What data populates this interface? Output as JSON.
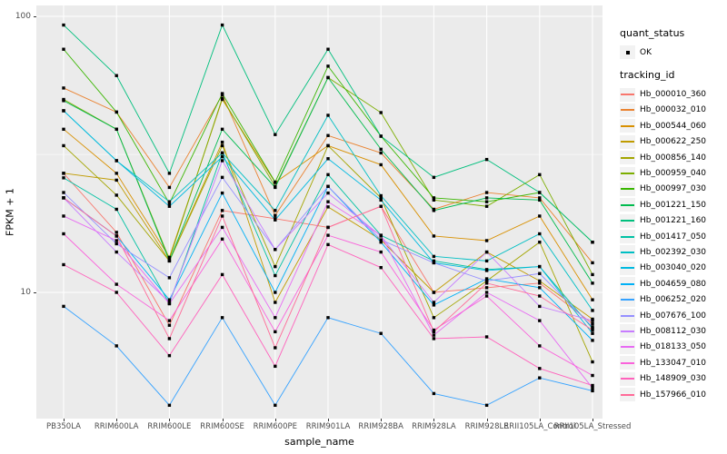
{
  "figure": {
    "background": "#FFFFFF",
    "panel_background": "#EBEBEB",
    "gridline_color": "#FFFFFF",
    "tick_label_color": "#4D4D4D",
    "point_color": "#000000"
  },
  "chart_data": {
    "type": "line",
    "title": "",
    "xlabel": "sample_name",
    "ylabel": "FPKM + 1",
    "y_scale": "log10",
    "ylim": [
      3.5,
      110
    ],
    "y_major_ticks": [
      100,
      10
    ],
    "y_major_tick_labels": [
      "100",
      "10"
    ],
    "y_minor_gridlines": [
      31.6
    ],
    "grid": "on",
    "legend_position": "right",
    "point_shape": "square",
    "categories": [
      "PB350LA",
      "RRIM600LA",
      "RRIM600LE",
      "RRIM600SE",
      "RRIM600PE",
      "RRIM901LA",
      "RRIM928BA",
      "RRIM928LA",
      "RRIM928LE",
      "RRII105LA_Control",
      "RRII105LA_Stressed"
    ],
    "series": [
      {
        "name": "Hb_000010_360",
        "color": "#F8766D",
        "values": [
          27,
          16.5,
          7.6,
          19.8,
          18.5,
          17.2,
          20.5,
          10.0,
          10.4,
          10.8,
          7.7
        ]
      },
      {
        "name": "Hb_000032_010",
        "color": "#EA8331",
        "values": [
          55,
          45,
          24,
          52,
          19,
          37,
          32,
          20,
          23,
          22,
          12.8
        ]
      },
      {
        "name": "Hb_000544_060",
        "color": "#D89000",
        "values": [
          39,
          27,
          13.4,
          50,
          25,
          34,
          29,
          16,
          15.4,
          18.9,
          9.4
        ]
      },
      {
        "name": "Hb_000622_250",
        "color": "#C09B00",
        "values": [
          27,
          25.5,
          13,
          35,
          9.2,
          20.4,
          15.5,
          10,
          14,
          11,
          8.0
        ]
      },
      {
        "name": "Hb_000856_140",
        "color": "#A3A500",
        "values": [
          34,
          22.5,
          13,
          34,
          12.4,
          34,
          22,
          8.1,
          11,
          15.2,
          5.6
        ]
      },
      {
        "name": "Hb_000959_040",
        "color": "#7CAE00",
        "values": [
          50,
          39,
          13.2,
          50.5,
          24.2,
          60,
          44.8,
          21.6,
          20.5,
          26.7,
          11.6
        ]
      },
      {
        "name": "Hb_000997_030",
        "color": "#39B600",
        "values": [
          76,
          45,
          21,
          52.5,
          25.1,
          66,
          36.8,
          22,
          21.3,
          23,
          15.2
        ]
      },
      {
        "name": "Hb_001221_150",
        "color": "#00BB4E",
        "values": [
          49.5,
          39,
          13,
          39,
          24,
          60,
          33,
          19.8,
          22,
          21.6,
          10.8
        ]
      },
      {
        "name": "Hb_001221_160",
        "color": "#00BF7D",
        "values": [
          93,
          61,
          27,
          93,
          37.3,
          76,
          36.8,
          26.1,
          30.3,
          23,
          15.2
        ]
      },
      {
        "name": "Hb_001417_050",
        "color": "#00C1A3",
        "values": [
          26,
          20,
          9.1,
          32,
          11.5,
          26.7,
          16.1,
          13,
          12.1,
          12.4,
          7.4
        ]
      },
      {
        "name": "Hb_002392_030",
        "color": "#00BFC4",
        "values": [
          45.5,
          30,
          21.3,
          32,
          19.8,
          43.8,
          22.4,
          13.5,
          13,
          16.3,
          8.6
        ]
      },
      {
        "name": "Hb_003040_020",
        "color": "#00BAE0",
        "values": [
          45.5,
          30,
          20.5,
          31,
          18.3,
          30.5,
          21.6,
          12.8,
          12,
          12.4,
          7.1
        ]
      },
      {
        "name": "Hb_004659_080",
        "color": "#00B0F6",
        "values": [
          22,
          16,
          9.4,
          22.9,
          10,
          24.2,
          15.2,
          9,
          11.2,
          10.4,
          6.7
        ]
      },
      {
        "name": "Hb_006252_020",
        "color": "#35A2FF",
        "values": [
          8.9,
          6.4,
          3.9,
          8.1,
          3.9,
          8.1,
          7.1,
          4.3,
          3.9,
          4.9,
          4.4
        ]
      },
      {
        "name": "Hb_007676_100",
        "color": "#9590FF",
        "values": [
          23,
          15,
          11.3,
          26.1,
          14.3,
          24.2,
          15.5,
          12.8,
          11,
          11.7,
          7.5
        ]
      },
      {
        "name": "Hb_008112_030",
        "color": "#C77CFF",
        "values": [
          22,
          14,
          9.2,
          30,
          14.3,
          22.9,
          16,
          9.2,
          14,
          8.9,
          7.9
        ]
      },
      {
        "name": "Hb_018133_050",
        "color": "#E76BF3",
        "values": [
          18.9,
          15.4,
          9.1,
          17.2,
          8.1,
          21.3,
          16.1,
          7.0,
          10,
          7.9,
          4.5
        ]
      },
      {
        "name": "Hb_133047_010",
        "color": "#FA62DB",
        "values": [
          16.3,
          10.7,
          7.9,
          15.6,
          7.2,
          16.1,
          14,
          7.3,
          9.7,
          6.4,
          5.0
        ]
      },
      {
        "name": "Hb_148909_030",
        "color": "#FF62BC",
        "values": [
          12.6,
          10,
          5.9,
          11.6,
          5.4,
          14.9,
          12.3,
          6.8,
          6.9,
          5.3,
          4.6
        ]
      },
      {
        "name": "Hb_157966_010",
        "color": "#FF6A98",
        "values": [
          22,
          16,
          6.8,
          18.9,
          6.3,
          17.2,
          20.5,
          7.2,
          10.8,
          9.7,
          7.3
        ]
      }
    ]
  },
  "legend": {
    "quant_status": {
      "title": "quant_status",
      "items": [
        {
          "label": "OK"
        }
      ]
    },
    "tracking_id": {
      "title": "tracking_id"
    }
  }
}
